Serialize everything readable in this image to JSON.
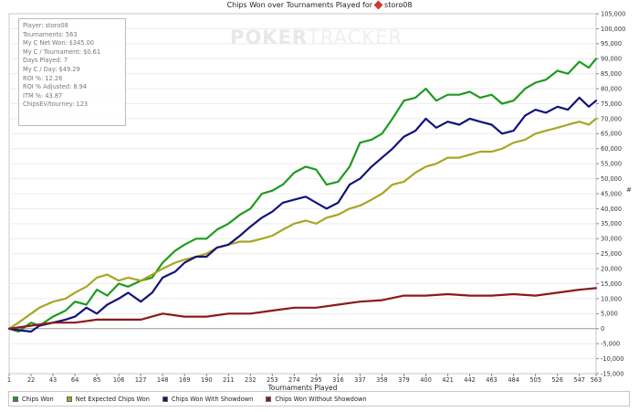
{
  "window": {
    "title": "Chips Won over Tournaments Played for",
    "player": "storo08",
    "watermark_brand": "POKER",
    "watermark_product": "TRACKER",
    "right_axis_symbol": "#"
  },
  "stats": [
    "Player: storo08",
    "Tournaments: 563",
    "My C Net Won: $345.00",
    "My C / Tournament: $0.61",
    "Days Played: 7",
    "My C / Day: $49.29",
    "ROI %: 12.26",
    "ROI % Adjusted: 8.94",
    "ITM %: 43.87",
    "ChipsEV/tourney: 123"
  ],
  "legend": [
    {
      "label": "Chips Won",
      "color": "#1f9a1f"
    },
    {
      "label": "Net Expected Chips Won",
      "color": "#a8a624"
    },
    {
      "label": "Chips Won With Showdown",
      "color": "#13137a"
    },
    {
      "label": "Chips Won Without Showdown",
      "color": "#8b1a1a"
    }
  ],
  "chart_data": {
    "type": "line",
    "title": "Chips Won over Tournaments Played for storo08",
    "xlabel": "Tournaments Played",
    "ylabel": "",
    "xlim": [
      1,
      563
    ],
    "ylim": [
      -15000,
      105000
    ],
    "x_ticks": [
      1,
      22,
      43,
      64,
      85,
      106,
      127,
      148,
      169,
      190,
      211,
      232,
      253,
      274,
      295,
      316,
      337,
      358,
      379,
      400,
      421,
      442,
      463,
      484,
      505,
      526,
      547,
      563
    ],
    "y_ticks": [
      -15000,
      -10000,
      -5000,
      0,
      5000,
      10000,
      15000,
      20000,
      25000,
      30000,
      35000,
      40000,
      45000,
      50000,
      55000,
      60000,
      65000,
      70000,
      75000,
      80000,
      85000,
      90000,
      95000,
      100000,
      105000
    ],
    "y_tick_labels": [
      "-15,000",
      "-10,000",
      "-5,000",
      "0",
      "5,000",
      "10,000",
      "15,000",
      "20,000",
      "25,000",
      "30,000",
      "35,000",
      "40,000",
      "45,000",
      "50,000",
      "55,000",
      "60,000",
      "65,000",
      "70,000",
      "75,000",
      "80,000",
      "85,000",
      "90,000",
      "95,000",
      "100,000",
      "105,000"
    ],
    "grid": "horizontal",
    "legend_position": "bottom",
    "series": [
      {
        "name": "Chips Won",
        "color": "#1f9a1f",
        "x": [
          1,
          10,
          22,
          30,
          43,
          55,
          64,
          75,
          85,
          95,
          106,
          115,
          127,
          138,
          148,
          160,
          169,
          180,
          190,
          200,
          211,
          222,
          232,
          243,
          253,
          263,
          274,
          285,
          295,
          305,
          316,
          327,
          337,
          348,
          358,
          368,
          379,
          390,
          400,
          410,
          421,
          432,
          442,
          452,
          463,
          473,
          484,
          495,
          505,
          515,
          526,
          536,
          547,
          556,
          563
        ],
        "y": [
          0,
          -1000,
          2000,
          1000,
          4000,
          6000,
          9000,
          8000,
          13000,
          11000,
          15000,
          14000,
          16000,
          17000,
          22000,
          26000,
          28000,
          30000,
          30000,
          33000,
          35000,
          38000,
          40000,
          45000,
          46000,
          48000,
          52000,
          54000,
          53000,
          48000,
          49000,
          54000,
          62000,
          63000,
          65000,
          70000,
          76000,
          77000,
          80000,
          76000,
          78000,
          78000,
          79000,
          77000,
          78000,
          75000,
          76000,
          80000,
          82000,
          83000,
          86000,
          85000,
          89000,
          87000,
          90000
        ]
      },
      {
        "name": "Net Expected Chips Won",
        "color": "#a8a624",
        "x": [
          1,
          10,
          22,
          30,
          43,
          55,
          64,
          75,
          85,
          95,
          106,
          115,
          127,
          138,
          148,
          160,
          169,
          180,
          190,
          200,
          211,
          222,
          232,
          243,
          253,
          263,
          274,
          285,
          295,
          305,
          316,
          327,
          337,
          348,
          358,
          368,
          379,
          390,
          400,
          410,
          421,
          432,
          442,
          452,
          463,
          473,
          484,
          495,
          505,
          515,
          526,
          536,
          547,
          556,
          563
        ],
        "y": [
          0,
          2000,
          5000,
          7000,
          9000,
          10000,
          12000,
          14000,
          17000,
          18000,
          16000,
          17000,
          16000,
          18000,
          20000,
          22000,
          23000,
          24000,
          25000,
          27000,
          28000,
          29000,
          29000,
          30000,
          31000,
          33000,
          35000,
          36000,
          35000,
          37000,
          38000,
          40000,
          41000,
          43000,
          45000,
          48000,
          49000,
          52000,
          54000,
          55000,
          57000,
          57000,
          58000,
          59000,
          59000,
          60000,
          62000,
          63000,
          65000,
          66000,
          67000,
          68000,
          69000,
          68000,
          70000
        ]
      },
      {
        "name": "Chips Won With Showdown",
        "color": "#13137a",
        "x": [
          1,
          10,
          22,
          30,
          43,
          55,
          64,
          75,
          85,
          95,
          106,
          115,
          127,
          138,
          148,
          160,
          169,
          180,
          190,
          200,
          211,
          222,
          232,
          243,
          253,
          263,
          274,
          285,
          295,
          305,
          316,
          327,
          337,
          348,
          358,
          368,
          379,
          390,
          400,
          410,
          421,
          432,
          442,
          452,
          463,
          473,
          484,
          495,
          505,
          515,
          526,
          536,
          547,
          556,
          563
        ],
        "y": [
          0,
          -500,
          -1000,
          1000,
          2000,
          3000,
          4000,
          7000,
          5000,
          8000,
          10000,
          12000,
          9000,
          12000,
          17000,
          19000,
          22000,
          24000,
          24000,
          27000,
          28000,
          31000,
          34000,
          37000,
          39000,
          42000,
          43000,
          44000,
          42000,
          40000,
          42000,
          48000,
          50000,
          54000,
          57000,
          60000,
          64000,
          66000,
          70000,
          67000,
          69000,
          68000,
          70000,
          69000,
          68000,
          65000,
          66000,
          71000,
          73000,
          72000,
          74000,
          73000,
          77000,
          74000,
          76000
        ]
      },
      {
        "name": "Chips Won Without Showdown",
        "color": "#8b1a1a",
        "x": [
          1,
          22,
          43,
          64,
          85,
          106,
          127,
          148,
          169,
          190,
          211,
          232,
          253,
          274,
          295,
          316,
          337,
          358,
          379,
          400,
          421,
          442,
          463,
          484,
          505,
          526,
          547,
          563
        ],
        "y": [
          0,
          1000,
          2000,
          2000,
          3000,
          3000,
          3000,
          5000,
          4000,
          4000,
          5000,
          5000,
          6000,
          7000,
          7000,
          8000,
          9000,
          9500,
          11000,
          11000,
          11500,
          11000,
          11000,
          11500,
          11000,
          12000,
          13000,
          13500
        ]
      }
    ]
  }
}
